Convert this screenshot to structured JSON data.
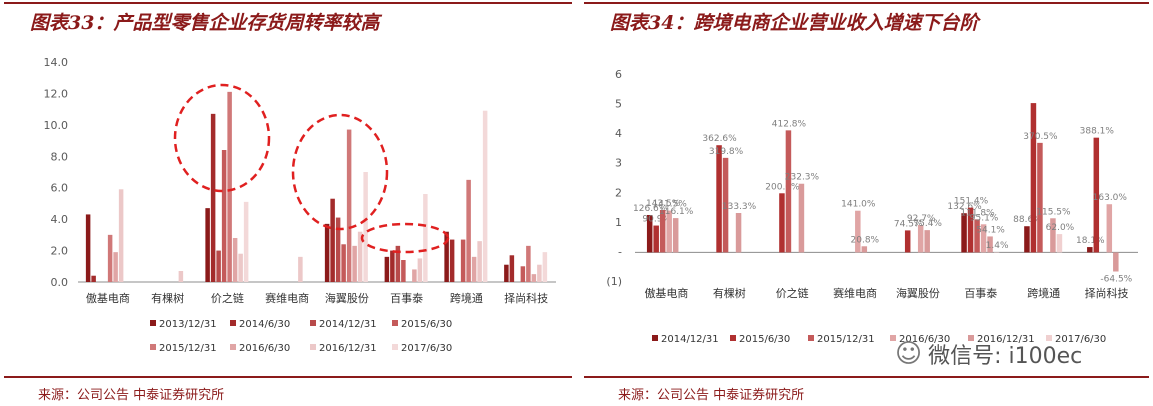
{
  "left": {
    "title": "图表33：产品型零售企业存货周转率较高",
    "source": "来源：公司公告 中泰证券研究所"
  },
  "right": {
    "title": "图表34：跨境电商企业营业收入增速下台阶",
    "source": "来源：公司公告 中泰证券研究所"
  },
  "watermark": {
    "text": "微信号: i100ec",
    "icon": "wechat-icon"
  },
  "colors": [
    "#8b1a1a",
    "#a32b2b",
    "#b84a4a",
    "#c45a5a",
    "#d07878",
    "#e0a5a5",
    "#ecc8c8",
    "#f3d9d9"
  ],
  "chart_data": [
    {
      "type": "bar",
      "title": "图表33：产品型零售企业存货周转率较高",
      "categories": [
        "傲基电商",
        "有棵树",
        "价之链",
        "赛维电商",
        "海翼股份",
        "百事泰",
        "跨境通",
        "择尚科技"
      ],
      "ylim": [
        0,
        14
      ],
      "yticks": [
        "0.0",
        "2.0",
        "4.0",
        "6.0",
        "8.0",
        "10.0",
        "12.0",
        "14.0"
      ],
      "grid": false,
      "legend": "bottom",
      "annotations": "red dashed ellipses around 价之链, 海翼股份 and 百事泰",
      "series": [
        {
          "name": "2013/12/31",
          "values": [
            4.3,
            null,
            4.7,
            null,
            3.7,
            1.6,
            3.2,
            1.1
          ]
        },
        {
          "name": "2014/6/30",
          "values": [
            0.4,
            null,
            10.7,
            null,
            5.3,
            2.0,
            2.7,
            1.7
          ]
        },
        {
          "name": "2014/12/31",
          "values": [
            null,
            null,
            2.0,
            null,
            4.1,
            2.3,
            null,
            null
          ]
        },
        {
          "name": "2015/6/30",
          "values": [
            null,
            null,
            8.4,
            null,
            2.4,
            1.4,
            2.7,
            1.0
          ]
        },
        {
          "name": "2015/12/31",
          "values": [
            3.0,
            null,
            12.1,
            null,
            9.7,
            null,
            6.5,
            2.3
          ]
        },
        {
          "name": "2016/6/30",
          "values": [
            1.9,
            null,
            2.8,
            null,
            2.3,
            0.8,
            1.6,
            0.5
          ]
        },
        {
          "name": "2016/12/31",
          "values": [
            5.9,
            0.7,
            1.8,
            1.6,
            3.2,
            1.5,
            2.6,
            1.1
          ]
        },
        {
          "name": "2017/6/30",
          "values": [
            null,
            null,
            5.1,
            null,
            7.0,
            5.6,
            10.9,
            1.9
          ]
        }
      ]
    },
    {
      "type": "bar",
      "title": "图表34：跨境电商企业营业收入增速下台阶",
      "categories": [
        "傲基电商",
        "有棵树",
        "价之链",
        "赛维电商",
        "海翼股份",
        "百事泰",
        "跨境通",
        "择尚科技"
      ],
      "ylim": [
        -1,
        6
      ],
      "yticks": [
        "(1)",
        "-",
        "1",
        "2",
        "3",
        "4",
        "5",
        "6"
      ],
      "grid": false,
      "legend": "bottom",
      "series": [
        {
          "name": "2014/12/31",
          "values": [
            1.266,
            null,
            null,
            null,
            null,
            1.326,
            0.886,
            0.181
          ],
          "labels": [
            "126.6%",
            "",
            "",
            "",
            "",
            "132.6%",
            "88.6%",
            "18.1%"
          ]
        },
        {
          "name": "2015/6/30",
          "values": [
            0.909,
            3.626,
            2.0,
            null,
            0.745,
            1.514,
            5.05,
            3.881
          ],
          "labels": [
            "90.9%",
            "362.6%",
            "200.0%",
            "",
            "74.5%",
            "151.4%",
            "",
            "388.1%"
          ]
        },
        {
          "name": "2015/12/31",
          "values": [
            1.435,
            3.198,
            4.128,
            null,
            null,
            1.118,
            3.705,
            null
          ],
          "labels": [
            "143.5%",
            "319.8%",
            "412.8%",
            "",
            "",
            "111.8%",
            "370.5%",
            ""
          ]
        },
        {
          "name": "2016/6/30",
          "values": [
            1.415,
            null,
            null,
            1.41,
            0.927,
            0.951,
            null,
            1.63
          ],
          "labels": [
            "141.5%",
            "",
            "",
            "141.0%",
            "92.7%",
            "95.1%",
            "",
            "163.0%"
          ]
        },
        {
          "name": "2016/12/31",
          "values": [
            1.161,
            1.333,
            2.323,
            0.208,
            0.754,
            0.541,
            1.155,
            -0.645
          ],
          "labels": [
            "116.1%",
            "133.3%",
            "232.3%",
            "20.8%",
            "75.4%",
            "54.1%",
            "115.5%",
            "-64.5%"
          ]
        },
        {
          "name": "2017/6/30",
          "values": [
            null,
            null,
            null,
            null,
            null,
            0.014,
            0.62,
            null
          ],
          "labels": [
            "",
            "",
            "",
            "",
            "",
            "1.4%",
            "62.0%",
            ""
          ]
        }
      ]
    }
  ]
}
